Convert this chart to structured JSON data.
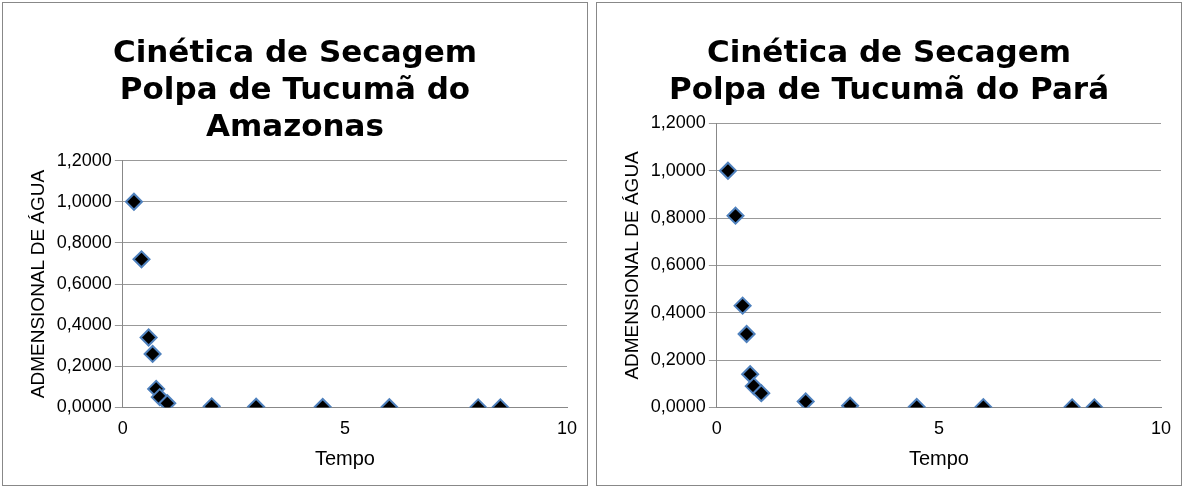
{
  "chart_data": [
    {
      "type": "scatter",
      "title": "Cinética de Secagem\nPolpa de Tucumã do\nAmazonas",
      "xlabel": "Tempo",
      "ylabel": "ADMENSIONAL DE ÁGUA",
      "x": [
        0.25,
        0.42,
        0.58,
        0.67,
        0.75,
        0.83,
        1,
        2,
        3,
        4.5,
        6,
        8,
        8.5
      ],
      "series": [
        {
          "color": "#000000",
          "values": [
            1.0,
            0.72,
            0.34,
            0.26,
            0.09,
            0.05,
            0.02,
            0.005,
            0.003,
            0.002,
            0.001,
            0,
            0
          ]
        }
      ],
      "xlim": [
        0,
        10
      ],
      "xticks": [
        0,
        5,
        10
      ],
      "ylim": [
        0,
        1.2
      ],
      "yticks": [
        {
          "value": 0,
          "label": "0,0000"
        },
        {
          "value": 0.2,
          "label": "0,2000"
        },
        {
          "value": 0.4,
          "label": "0,4000"
        },
        {
          "value": 0.6,
          "label": "0,6000"
        },
        {
          "value": 0.8,
          "label": "0,8000"
        },
        {
          "value": 1,
          "label": "1,0000"
        },
        {
          "value": 1.2,
          "label": "1,2000"
        }
      ],
      "grid": "y",
      "legend": false,
      "marker": "diamond"
    },
    {
      "type": "scatter",
      "title": "Cinética de Secagem\nPolpa de Tucumã do Pará",
      "xlabel": "Tempo",
      "ylabel": "ADMENSIONAL DE ÁGUA",
      "x": [
        0.25,
        0.42,
        0.58,
        0.67,
        0.75,
        0.83,
        1,
        2,
        3,
        4.5,
        6,
        8,
        8.5
      ],
      "series": [
        {
          "color": "#000000",
          "values": [
            1.0,
            0.81,
            0.43,
            0.31,
            0.14,
            0.09,
            0.06,
            0.025,
            0.007,
            0.002,
            0.001,
            0,
            0
          ]
        }
      ],
      "xlim": [
        0,
        10
      ],
      "xticks": [
        0,
        5,
        10
      ],
      "ylim": [
        0,
        1.2
      ],
      "yticks": [
        {
          "value": 0,
          "label": "0,0000"
        },
        {
          "value": 0.2,
          "label": "0,2000"
        },
        {
          "value": 0.4,
          "label": "0,4000"
        },
        {
          "value": 0.6,
          "label": "0,6000"
        },
        {
          "value": 0.8,
          "label": "0,8000"
        },
        {
          "value": 1,
          "label": "1,0000"
        },
        {
          "value": 1.2,
          "label": "1,2000"
        }
      ],
      "grid": "y",
      "legend": false,
      "marker": "diamond"
    }
  ]
}
